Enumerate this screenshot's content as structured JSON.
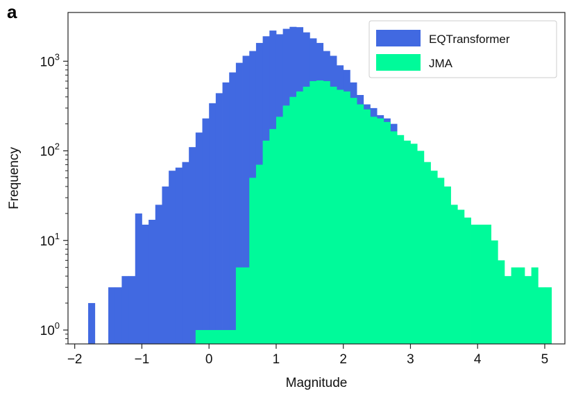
{
  "panel_label": "a",
  "chart_data": {
    "type": "bar",
    "subtype": "overlaid-histogram",
    "xlabel": "Magnitude",
    "ylabel": "Frequency",
    "xlim": [
      -2.1,
      5.3
    ],
    "ylim": [
      0.7,
      3500
    ],
    "yscale": "log",
    "bin_width": 0.1,
    "x_ticks": [
      {
        "value": -2,
        "label": "−2"
      },
      {
        "value": -1,
        "label": "−1"
      },
      {
        "value": 0,
        "label": "0"
      },
      {
        "value": 1,
        "label": "1"
      },
      {
        "value": 2,
        "label": "2"
      },
      {
        "value": 3,
        "label": "3"
      },
      {
        "value": 4,
        "label": "4"
      },
      {
        "value": 5,
        "label": "5"
      }
    ],
    "y_ticks": [
      {
        "value": 1,
        "base": "10",
        "exp": "0"
      },
      {
        "value": 10,
        "base": "10",
        "exp": "1"
      },
      {
        "value": 100,
        "base": "10",
        "exp": "2"
      },
      {
        "value": 1000,
        "base": "10",
        "exp": "3"
      }
    ],
    "grid": false,
    "legend_position": "top-right",
    "series": [
      {
        "name": "EQTransformer",
        "color": "#4169e1",
        "bins": [
          {
            "x": -1.8,
            "y": 2
          },
          {
            "x": -1.5,
            "y": 3
          },
          {
            "x": -1.4,
            "y": 3
          },
          {
            "x": -1.3,
            "y": 4
          },
          {
            "x": -1.2,
            "y": 4
          },
          {
            "x": -1.1,
            "y": 20
          },
          {
            "x": -1.0,
            "y": 15
          },
          {
            "x": -0.9,
            "y": 17
          },
          {
            "x": -0.8,
            "y": 25
          },
          {
            "x": -0.7,
            "y": 40
          },
          {
            "x": -0.6,
            "y": 60
          },
          {
            "x": -0.5,
            "y": 65
          },
          {
            "x": -0.4,
            "y": 75
          },
          {
            "x": -0.3,
            "y": 110
          },
          {
            "x": -0.2,
            "y": 160
          },
          {
            "x": -0.1,
            "y": 230
          },
          {
            "x": 0.0,
            "y": 340
          },
          {
            "x": 0.1,
            "y": 440
          },
          {
            "x": 0.2,
            "y": 580
          },
          {
            "x": 0.3,
            "y": 750
          },
          {
            "x": 0.4,
            "y": 960
          },
          {
            "x": 0.5,
            "y": 1150
          },
          {
            "x": 0.6,
            "y": 1300
          },
          {
            "x": 0.7,
            "y": 1600
          },
          {
            "x": 0.8,
            "y": 1900
          },
          {
            "x": 0.9,
            "y": 2200
          },
          {
            "x": 1.0,
            "y": 2000
          },
          {
            "x": 1.1,
            "y": 2300
          },
          {
            "x": 1.2,
            "y": 2420
          },
          {
            "x": 1.3,
            "y": 2400
          },
          {
            "x": 1.4,
            "y": 2100
          },
          {
            "x": 1.5,
            "y": 1800
          },
          {
            "x": 1.6,
            "y": 1600
          },
          {
            "x": 1.7,
            "y": 1300
          },
          {
            "x": 1.8,
            "y": 1150
          },
          {
            "x": 1.9,
            "y": 900
          },
          {
            "x": 2.0,
            "y": 800
          },
          {
            "x": 2.1,
            "y": 580
          },
          {
            "x": 2.2,
            "y": 420
          },
          {
            "x": 2.3,
            "y": 330
          },
          {
            "x": 2.4,
            "y": 300
          },
          {
            "x": 2.5,
            "y": 250
          },
          {
            "x": 2.6,
            "y": 230
          },
          {
            "x": 2.7,
            "y": 200
          }
        ]
      },
      {
        "name": "JMA",
        "color": "#00fa9a",
        "bins": [
          {
            "x": -0.2,
            "y": 1
          },
          {
            "x": -0.1,
            "y": 1
          },
          {
            "x": 0.0,
            "y": 1
          },
          {
            "x": 0.1,
            "y": 1
          },
          {
            "x": 0.2,
            "y": 1
          },
          {
            "x": 0.3,
            "y": 1
          },
          {
            "x": 0.4,
            "y": 5
          },
          {
            "x": 0.5,
            "y": 5
          },
          {
            "x": 0.6,
            "y": 50
          },
          {
            "x": 0.7,
            "y": 70
          },
          {
            "x": 0.8,
            "y": 130
          },
          {
            "x": 0.9,
            "y": 175
          },
          {
            "x": 1.0,
            "y": 240
          },
          {
            "x": 1.1,
            "y": 320
          },
          {
            "x": 1.2,
            "y": 400
          },
          {
            "x": 1.3,
            "y": 460
          },
          {
            "x": 1.4,
            "y": 520
          },
          {
            "x": 1.5,
            "y": 600
          },
          {
            "x": 1.6,
            "y": 610
          },
          {
            "x": 1.7,
            "y": 600
          },
          {
            "x": 1.8,
            "y": 520
          },
          {
            "x": 1.9,
            "y": 480
          },
          {
            "x": 2.0,
            "y": 460
          },
          {
            "x": 2.1,
            "y": 390
          },
          {
            "x": 2.2,
            "y": 330
          },
          {
            "x": 2.3,
            "y": 290
          },
          {
            "x": 2.4,
            "y": 240
          },
          {
            "x": 2.5,
            "y": 230
          },
          {
            "x": 2.6,
            "y": 210
          },
          {
            "x": 2.7,
            "y": 165
          },
          {
            "x": 2.8,
            "y": 150
          },
          {
            "x": 2.9,
            "y": 130
          },
          {
            "x": 3.0,
            "y": 120
          },
          {
            "x": 3.1,
            "y": 100
          },
          {
            "x": 3.2,
            "y": 75
          },
          {
            "x": 3.3,
            "y": 60
          },
          {
            "x": 3.4,
            "y": 50
          },
          {
            "x": 3.5,
            "y": 40
          },
          {
            "x": 3.6,
            "y": 25
          },
          {
            "x": 3.7,
            "y": 22
          },
          {
            "x": 3.8,
            "y": 18
          },
          {
            "x": 3.9,
            "y": 15
          },
          {
            "x": 4.0,
            "y": 15
          },
          {
            "x": 4.1,
            "y": 15
          },
          {
            "x": 4.2,
            "y": 10
          },
          {
            "x": 4.3,
            "y": 6
          },
          {
            "x": 4.4,
            "y": 4
          },
          {
            "x": 4.5,
            "y": 5
          },
          {
            "x": 4.6,
            "y": 5
          },
          {
            "x": 4.7,
            "y": 4
          },
          {
            "x": 4.8,
            "y": 5
          },
          {
            "x": 4.9,
            "y": 3
          },
          {
            "x": 5.0,
            "y": 3
          }
        ]
      }
    ]
  }
}
